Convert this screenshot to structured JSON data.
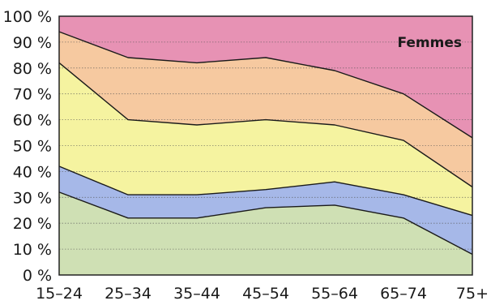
{
  "chart_data": {
    "type": "area",
    "stacked": true,
    "title": "Femmes",
    "categories": [
      "15–24",
      "25–34",
      "35–44",
      "45–54",
      "55–64",
      "65–74",
      "75+"
    ],
    "y_ticks": [
      "0 %",
      "10 %",
      "20 %",
      "30 %",
      "40 %",
      "50 %",
      "60 %",
      "70 %",
      "80 %",
      "90 %",
      "100 %"
    ],
    "ylim": [
      0,
      100
    ],
    "grid": true,
    "boundaries": [
      [
        32,
        22,
        22,
        26,
        27,
        22,
        8
      ],
      [
        42,
        31,
        31,
        33,
        36,
        31,
        23
      ],
      [
        82,
        60,
        58,
        60,
        58,
        52,
        34
      ],
      [
        94,
        84,
        82,
        84,
        79,
        70,
        53
      ],
      [
        100,
        100,
        100,
        100,
        100,
        100,
        100
      ]
    ],
    "band_colors": [
      "#cfe0b4",
      "#a6b8e8",
      "#f5f3a0",
      "#f6c9a0",
      "#e792b4"
    ]
  }
}
